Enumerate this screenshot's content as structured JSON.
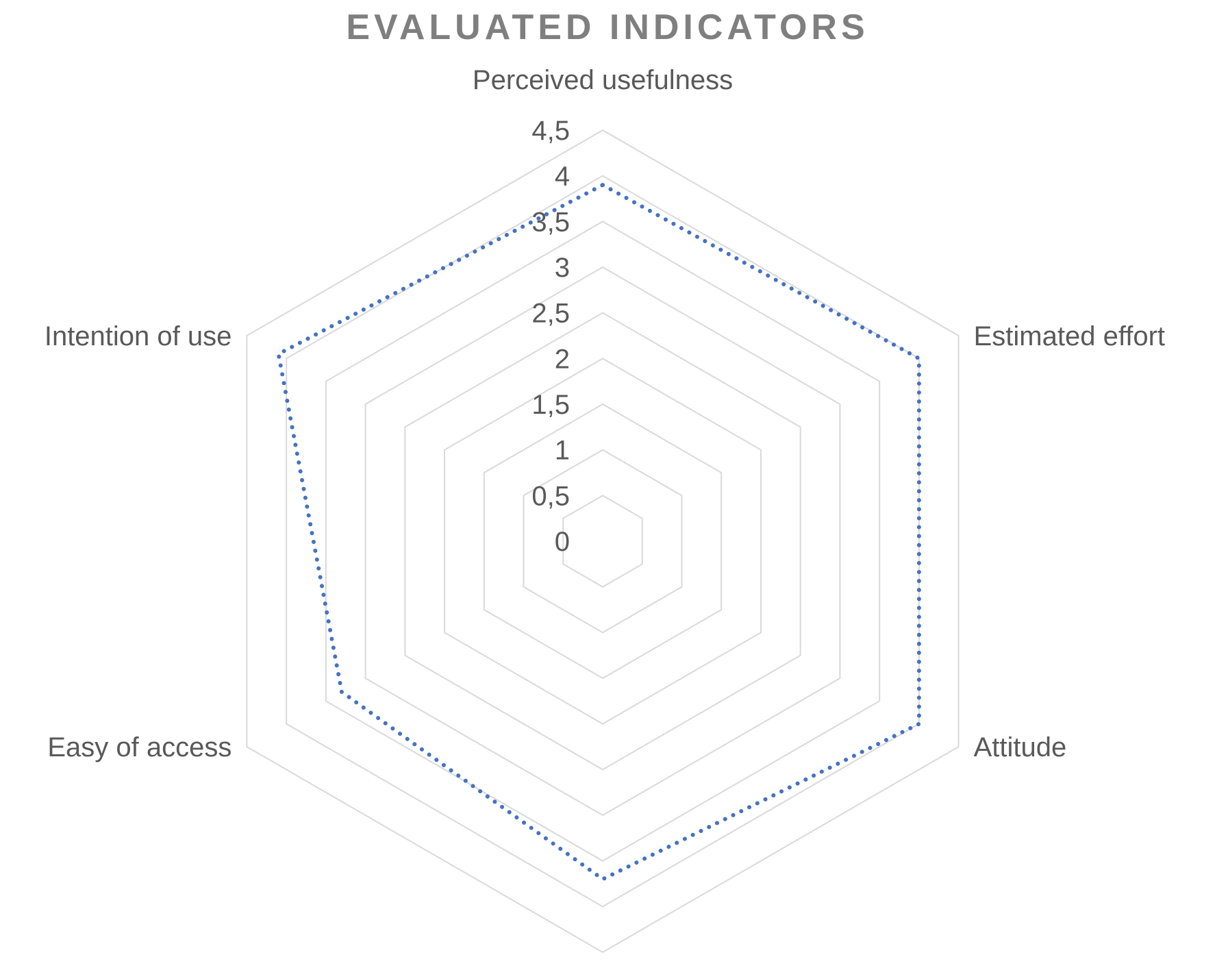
{
  "chart_data": {
    "type": "radar",
    "title": "EVALUATED INDICATORS",
    "categories": [
      "Perceived usefulness",
      "Estimated effort",
      "Attitude",
      "",
      "Easy of access",
      "Intention of use"
    ],
    "ticks": [
      "0",
      "0,5",
      "1",
      "1,5",
      "2",
      "2,5",
      "3",
      "3,5",
      "4",
      "4,5"
    ],
    "rmin": 0,
    "rmax": 4.5,
    "grid": true,
    "series": [
      {
        "values": [
          3.9,
          4.0,
          4.0,
          3.7,
          3.3,
          4.1
        ],
        "color": "#4472c4",
        "line_style": "dotted"
      }
    ]
  }
}
